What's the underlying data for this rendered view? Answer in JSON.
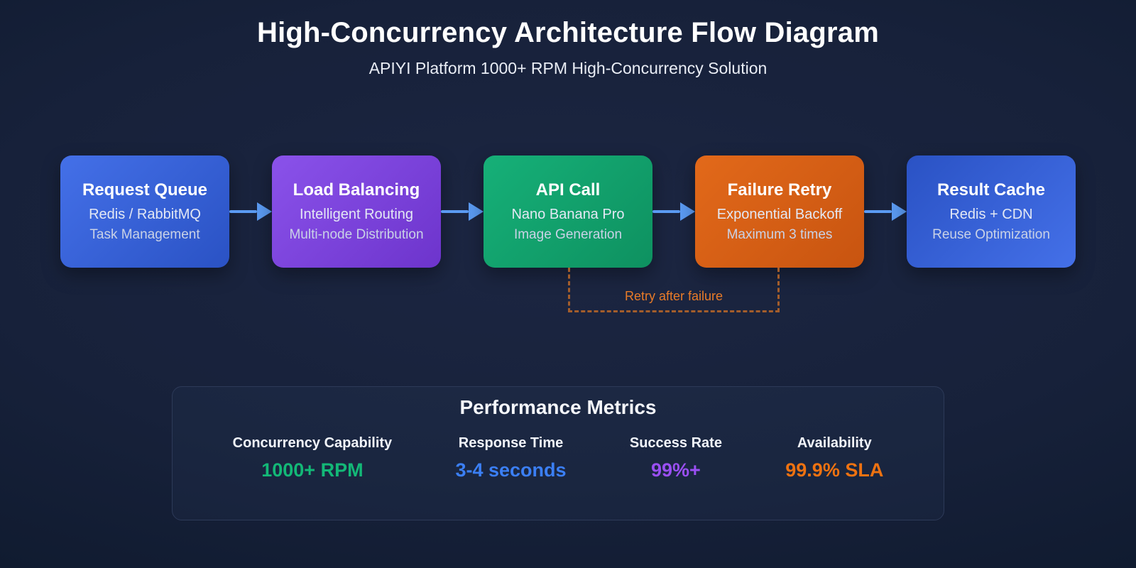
{
  "page": {
    "title": "High-Concurrency Architecture Flow Diagram",
    "subtitle": "APIYI Platform 1000+ RPM High-Concurrency Solution",
    "background_color": "#17213a"
  },
  "flow": {
    "arrow_color": "#5b9bf3",
    "nodes": [
      {
        "title": "Request Queue",
        "line1": "Redis / RabbitMQ",
        "line2": "Task Management",
        "grad": {
          "from": "#4470e8",
          "to": "#2a52c4"
        }
      },
      {
        "title": "Load Balancing",
        "line1": "Intelligent Routing",
        "line2": "Multi-node Distribution",
        "grad": {
          "from": "#8a52ea",
          "to": "#6d34cc"
        }
      },
      {
        "title": "API Call",
        "line1": "Nano Banana Pro",
        "line2": "Image Generation",
        "grad": {
          "from": "#16b078",
          "to": "#0e9160"
        }
      },
      {
        "title": "Failure Retry",
        "line1": "Exponential Backoff",
        "line2": "Maximum 3 times",
        "grad": {
          "from": "#e2691a",
          "to": "#c85410"
        }
      },
      {
        "title": "Result Cache",
        "line1": "Redis + CDN",
        "line2": "Reuse Optimization",
        "grad": {
          "from": "#2a52c4",
          "to": "#4470e8"
        }
      }
    ],
    "retry": {
      "label": "Retry after failure",
      "line_color": "#a35d2b",
      "label_color": "#e87b28"
    }
  },
  "metrics": {
    "title": "Performance Metrics",
    "items": [
      {
        "label": "Concurrency Capability",
        "value": "1000+ RPM",
        "color": "#13b877"
      },
      {
        "label": "Response Time",
        "value": "3-4 seconds",
        "color": "#3b7ff5"
      },
      {
        "label": "Success Rate",
        "value": "99%+",
        "color": "#9a4ff2"
      },
      {
        "label": "Availability",
        "value": "99.9% SLA",
        "color": "#ee7211"
      }
    ]
  }
}
